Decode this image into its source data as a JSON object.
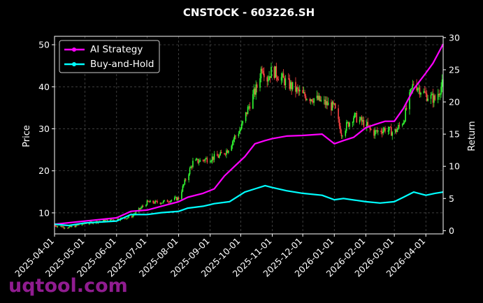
{
  "chart_data": {
    "type": "line",
    "title": "CNSTOCK - 603226.SH",
    "xlabel": "",
    "ylabel": "Price",
    "y2label": "Return",
    "watermark": "uqtool.com",
    "x_ticks": [
      "2025-04-01",
      "2025-05-01",
      "2025-06-01",
      "2025-07-01",
      "2025-08-01",
      "2025-09-01",
      "2025-10-01",
      "2025-11-01",
      "2025-12-01",
      "2026-01-01",
      "2026-02-01",
      "2026-03-01",
      "2026-04-01"
    ],
    "xlim": [
      "2025-04-01",
      "2026-04-18"
    ],
    "ylim": [
      5,
      52
    ],
    "y_ticks": [
      "10",
      "20",
      "30",
      "40",
      "50"
    ],
    "y2lim": [
      -0.5,
      30.2
    ],
    "y2_ticks": [
      "0",
      "5",
      "10",
      "15",
      "20",
      "25",
      "30"
    ],
    "grid": true,
    "legend_position": "top-left",
    "up_color": "#33ff33",
    "down_color": "#ff4444",
    "price_series_dates": [
      "2025-04-01",
      "2025-04-15",
      "2025-05-01",
      "2025-05-15",
      "2025-06-01",
      "2025-06-15",
      "2025-07-01",
      "2025-07-15",
      "2025-08-01",
      "2025-08-08",
      "2025-08-15",
      "2025-09-01",
      "2025-09-10",
      "2025-09-18",
      "2025-09-25",
      "2025-10-01",
      "2025-10-10",
      "2025-10-17",
      "2025-10-22",
      "2025-10-27",
      "2025-11-01",
      "2025-11-15",
      "2025-12-01",
      "2025-12-15",
      "2026-01-01",
      "2026-01-08",
      "2026-01-20",
      "2026-02-01",
      "2026-02-08",
      "2026-02-20",
      "2026-03-01",
      "2026-03-10",
      "2026-03-20",
      "2026-04-01",
      "2026-04-10",
      "2026-04-18"
    ],
    "price_series": [
      7,
      6.5,
      7.5,
      8,
      8.5,
      9,
      12.5,
      12.5,
      13.5,
      18,
      22,
      23,
      23.5,
      25,
      28,
      30,
      36,
      40,
      45,
      42,
      44,
      41,
      38,
      37,
      35,
      29,
      33,
      31,
      29,
      30,
      29,
      32,
      41,
      38,
      37,
      41
    ],
    "series": [
      {
        "name": "AI Strategy",
        "color": "#ff00ff",
        "dates": [
          "2025-04-01",
          "2025-05-01",
          "2025-06-01",
          "2025-06-15",
          "2025-07-01",
          "2025-07-15",
          "2025-08-01",
          "2025-08-10",
          "2025-08-25",
          "2025-09-05",
          "2025-09-15",
          "2025-09-25",
          "2025-10-05",
          "2025-10-15",
          "2025-10-25",
          "2025-11-01",
          "2025-11-15",
          "2025-12-01",
          "2025-12-20",
          "2026-01-01",
          "2026-01-10",
          "2026-01-20",
          "2026-02-01",
          "2026-02-10",
          "2026-02-20",
          "2026-03-01",
          "2026-03-10",
          "2026-03-20",
          "2026-04-01",
          "2026-04-08",
          "2026-04-18"
        ],
        "values": [
          1,
          1.5,
          2,
          3,
          3.2,
          3.8,
          4.5,
          5.2,
          5.8,
          6.5,
          8.5,
          10,
          11.5,
          13.5,
          14,
          14.3,
          14.7,
          14.8,
          15,
          13.5,
          14,
          14.5,
          16,
          16.5,
          17,
          17,
          19,
          22,
          24.5,
          26,
          29
        ]
      },
      {
        "name": "Buy-and-Hold",
        "color": "#00ffff",
        "dates": [
          "2025-04-01",
          "2025-04-15",
          "2025-05-01",
          "2025-06-01",
          "2025-06-15",
          "2025-07-01",
          "2025-07-15",
          "2025-08-01",
          "2025-08-10",
          "2025-08-25",
          "2025-09-05",
          "2025-09-20",
          "2025-10-05",
          "2025-10-15",
          "2025-10-25",
          "2025-11-01",
          "2025-11-15",
          "2025-12-01",
          "2025-12-20",
          "2026-01-01",
          "2026-01-10",
          "2026-02-01",
          "2026-02-15",
          "2026-03-01",
          "2026-03-10",
          "2026-03-20",
          "2026-04-01",
          "2026-04-10",
          "2026-04-18"
        ],
        "values": [
          1,
          0.8,
          1.2,
          1.5,
          2.5,
          2.5,
          2.8,
          3,
          3.5,
          3.8,
          4.2,
          4.5,
          6,
          6.5,
          7,
          6.7,
          6.2,
          5.8,
          5.5,
          4.8,
          5,
          4.5,
          4.3,
          4.5,
          5.2,
          6,
          5.5,
          5.8,
          6
        ]
      }
    ]
  }
}
